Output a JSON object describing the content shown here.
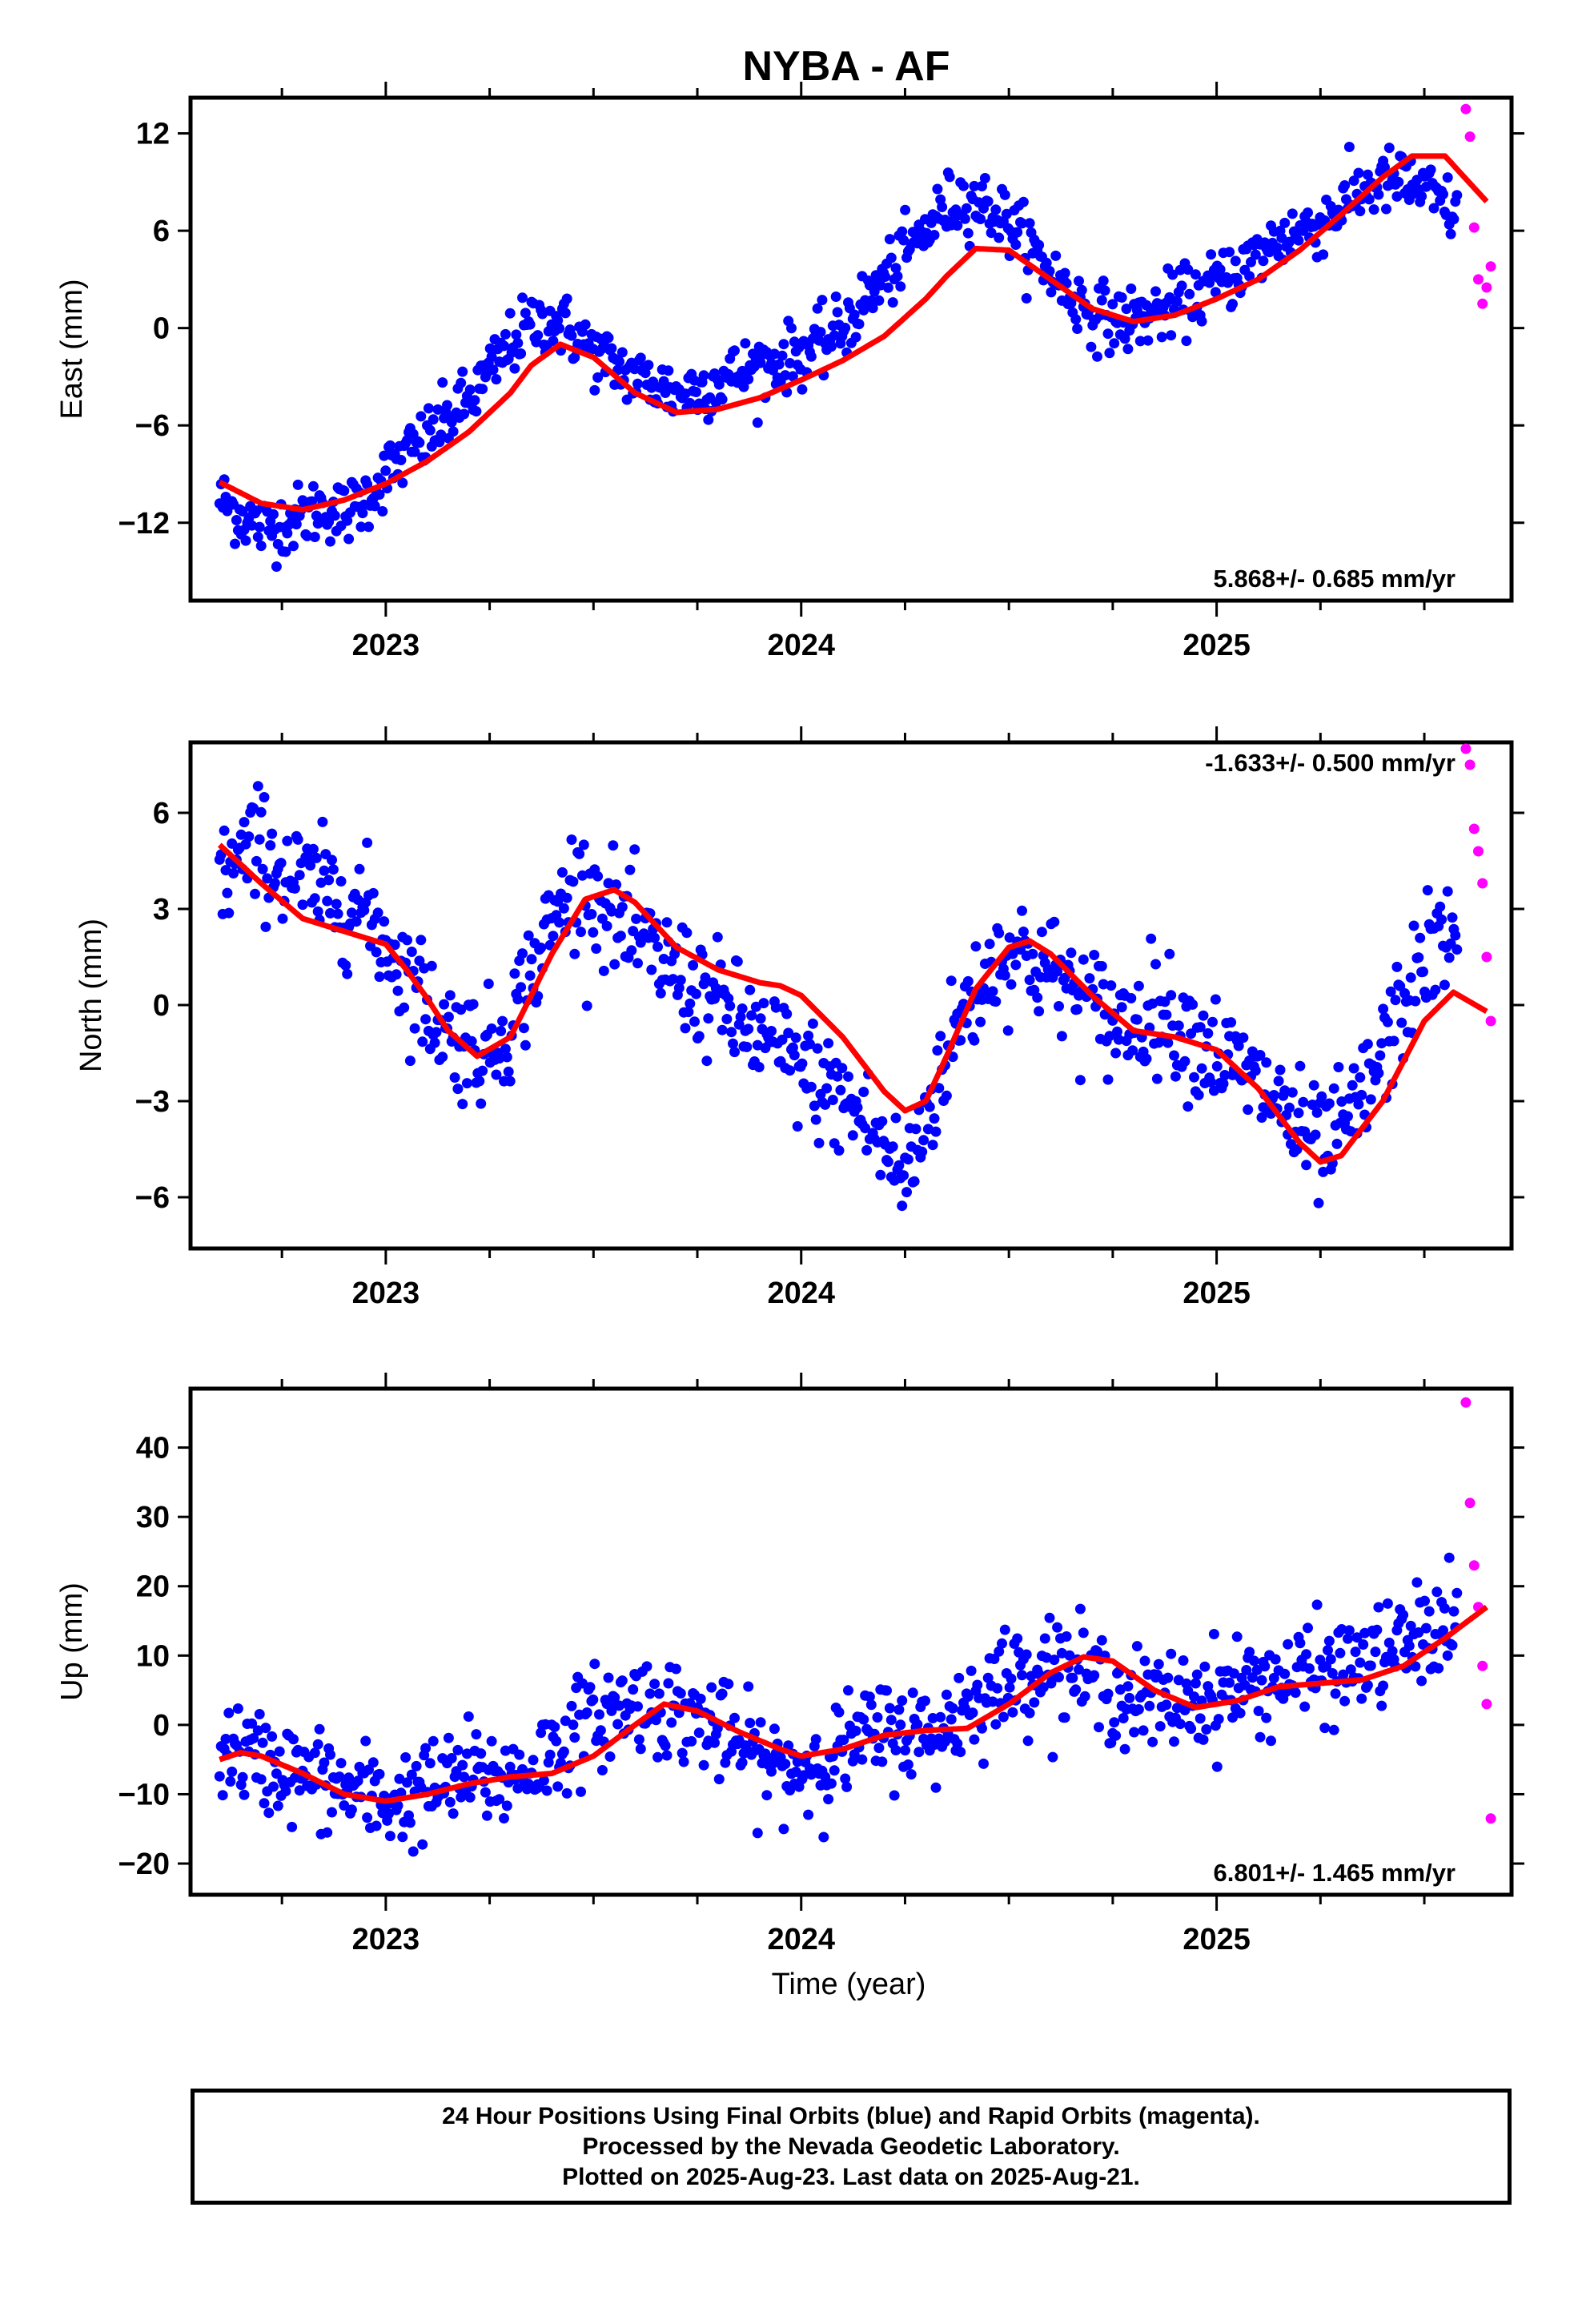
{
  "title": "NYBA - AF",
  "xlabel": "Time (year)",
  "x_ticks": [
    "2023",
    "2024",
    "2025"
  ],
  "colors": {
    "final": "#0000ff",
    "rapid": "#ff00ff",
    "fit": "#ff0000",
    "frame": "#000000"
  },
  "footer": {
    "line1": "24 Hour Positions Using Final Orbits (blue) and Rapid Orbits (magenta).",
    "line2": "Processed by the Nevada Geodetic Laboratory.",
    "line3": "Plotted on 2025-Aug-23. Last data on 2025-Aug-21."
  },
  "chart_data": [
    {
      "type": "scatter",
      "ylabel": "East (mm)",
      "rate": "5.868+/- 0.685 mm/yr",
      "rate_position": "bottom-right",
      "xlim": [
        2022.53,
        2025.71
      ],
      "ylim": [
        -16.8,
        14.2
      ],
      "yticks": [
        -12,
        -6,
        0,
        6,
        12
      ],
      "x_ticks": [
        2023,
        2024,
        2025
      ],
      "series": [
        {
          "role": "final",
          "x": [
            2022.6,
            2022.65,
            2022.7,
            2022.75,
            2022.8,
            2022.85,
            2022.9,
            2022.95,
            2023.0,
            2023.05,
            2023.1,
            2023.15,
            2023.2,
            2023.25,
            2023.3,
            2023.35,
            2023.4,
            2023.45,
            2023.5,
            2023.55,
            2023.6,
            2023.65,
            2023.7,
            2023.75,
            2023.8,
            2023.85,
            2023.9,
            2023.95,
            2024.0,
            2024.05,
            2024.1,
            2024.15,
            2024.2,
            2024.25,
            2024.3,
            2024.35,
            2024.4,
            2024.45,
            2024.5,
            2024.55,
            2024.6,
            2024.65,
            2024.7,
            2024.75,
            2024.8,
            2024.85,
            2024.9,
            2024.95,
            2025.0,
            2025.05,
            2025.1,
            2025.15,
            2025.2,
            2025.25,
            2025.3,
            2025.35,
            2025.4,
            2025.45,
            2025.5,
            2025.55,
            2025.58
          ],
          "y": [
            -10.5,
            -11.5,
            -12.3,
            -12.0,
            -11.6,
            -11.0,
            -11.5,
            -10.5,
            -9.0,
            -7.8,
            -6.8,
            -5.5,
            -4.5,
            -2.8,
            -1.0,
            0.2,
            0.5,
            -0.3,
            -1.5,
            -2.3,
            -3.0,
            -3.5,
            -4.0,
            -3.8,
            -3.2,
            -2.8,
            -2.3,
            -2.0,
            -1.5,
            -1.0,
            0.0,
            1.5,
            3.0,
            4.5,
            6.0,
            7.5,
            8.0,
            7.5,
            6.5,
            5.0,
            3.5,
            2.0,
            1.0,
            0.5,
            0.5,
            1.0,
            1.5,
            2.0,
            2.8,
            3.5,
            4.5,
            5.5,
            6.0,
            6.5,
            7.5,
            8.5,
            9.0,
            9.0,
            8.5,
            7.5,
            7.0
          ]
        },
        {
          "role": "rapid",
          "x": [
            2025.6,
            2025.61,
            2025.62,
            2025.63,
            2025.64,
            2025.65,
            2025.66
          ],
          "y": [
            13.5,
            11.8,
            6.2,
            3.0,
            1.5,
            2.5,
            3.8
          ]
        },
        {
          "role": "fit",
          "x": [
            2022.6,
            2022.7,
            2022.8,
            2022.9,
            2023.0,
            2023.1,
            2023.2,
            2023.3,
            2023.35,
            2023.42,
            2023.5,
            2023.6,
            2023.7,
            2023.8,
            2023.9,
            2024.0,
            2024.1,
            2024.2,
            2024.3,
            2024.35,
            2024.42,
            2024.5,
            2024.6,
            2024.7,
            2024.8,
            2024.9,
            2025.0,
            2025.1,
            2025.2,
            2025.3,
            2025.4,
            2025.47,
            2025.55,
            2025.65
          ],
          "y": [
            -9.5,
            -10.8,
            -11.2,
            -10.6,
            -9.6,
            -8.2,
            -6.4,
            -4.0,
            -2.3,
            -1.0,
            -1.8,
            -4.0,
            -5.2,
            -5.0,
            -4.3,
            -3.2,
            -2.0,
            -0.5,
            1.8,
            3.2,
            4.9,
            4.8,
            3.0,
            1.2,
            0.4,
            0.8,
            1.8,
            3.0,
            4.8,
            7.0,
            9.3,
            10.6,
            10.6,
            7.8
          ]
        }
      ]
    },
    {
      "type": "scatter",
      "ylabel": "North (mm)",
      "rate": "-1.633+/- 0.500 mm/yr",
      "rate_position": "top-right",
      "xlim": [
        2022.53,
        2025.71
      ],
      "ylim": [
        -7.6,
        8.2
      ],
      "yticks": [
        -6,
        -3,
        0,
        3,
        6
      ],
      "x_ticks": [
        2023,
        2024,
        2025
      ],
      "series": [
        {
          "role": "final",
          "x": [
            2022.6,
            2022.65,
            2022.7,
            2022.75,
            2022.8,
            2022.85,
            2022.9,
            2022.95,
            2023.0,
            2023.05,
            2023.1,
            2023.15,
            2023.2,
            2023.25,
            2023.3,
            2023.35,
            2023.4,
            2023.45,
            2023.5,
            2023.55,
            2023.6,
            2023.65,
            2023.7,
            2023.75,
            2023.8,
            2023.85,
            2023.9,
            2023.95,
            2024.0,
            2024.05,
            2024.1,
            2024.15,
            2024.2,
            2024.25,
            2024.3,
            2024.35,
            2024.4,
            2024.45,
            2024.5,
            2024.55,
            2024.6,
            2024.65,
            2024.7,
            2024.75,
            2024.8,
            2024.85,
            2024.9,
            2024.95,
            2025.0,
            2025.05,
            2025.1,
            2025.15,
            2025.2,
            2025.25,
            2025.3,
            2025.35,
            2025.4,
            2025.45,
            2025.5,
            2025.55,
            2025.58
          ],
          "y": [
            4.0,
            4.5,
            5.0,
            4.2,
            3.8,
            3.5,
            3.3,
            3.0,
            2.0,
            1.0,
            0.0,
            -0.8,
            -1.2,
            -1.5,
            -0.5,
            1.0,
            2.5,
            3.8,
            3.5,
            2.8,
            2.0,
            1.5,
            1.0,
            0.5,
            0.0,
            -0.5,
            -1.0,
            -1.5,
            -2.0,
            -2.5,
            -3.0,
            -3.5,
            -4.5,
            -5.5,
            -3.5,
            -1.5,
            0.0,
            1.0,
            1.8,
            1.5,
            1.0,
            0.5,
            0.0,
            -0.5,
            -0.5,
            0.0,
            -0.5,
            -1.0,
            -1.5,
            -2.0,
            -2.5,
            -3.0,
            -4.0,
            -4.5,
            -4.0,
            -3.0,
            -1.5,
            0.0,
            1.5,
            2.0,
            1.8
          ]
        },
        {
          "role": "rapid",
          "x": [
            2025.6,
            2025.61,
            2025.62,
            2025.63,
            2025.64,
            2025.65,
            2025.66
          ],
          "y": [
            8.0,
            7.5,
            5.5,
            4.8,
            3.8,
            1.5,
            -0.5
          ]
        },
        {
          "role": "fit",
          "x": [
            2022.6,
            2022.7,
            2022.8,
            2022.9,
            2023.0,
            2023.05,
            2023.1,
            2023.15,
            2023.22,
            2023.3,
            2023.4,
            2023.48,
            2023.55,
            2023.6,
            2023.7,
            2023.8,
            2023.9,
            2023.95,
            2024.0,
            2024.1,
            2024.2,
            2024.25,
            2024.3,
            2024.35,
            2024.42,
            2024.5,
            2024.55,
            2024.6,
            2024.7,
            2024.8,
            2024.9,
            2025.0,
            2025.1,
            2025.2,
            2025.25,
            2025.3,
            2025.4,
            2025.5,
            2025.57,
            2025.65
          ],
          "y": [
            5.0,
            3.8,
            2.7,
            2.3,
            1.9,
            1.1,
            0.2,
            -0.8,
            -1.6,
            -1.0,
            1.6,
            3.3,
            3.6,
            3.2,
            1.8,
            1.1,
            0.7,
            0.6,
            0.3,
            -1.0,
            -2.7,
            -3.3,
            -3.0,
            -1.6,
            0.5,
            1.8,
            2.0,
            1.6,
            0.3,
            -0.8,
            -1.0,
            -1.4,
            -2.6,
            -4.3,
            -4.9,
            -4.7,
            -3.0,
            -0.5,
            0.4,
            -0.2
          ]
        }
      ]
    },
    {
      "type": "scatter",
      "ylabel": "Up (mm)",
      "rate": "6.801+/- 1.465 mm/yr",
      "rate_position": "bottom-right",
      "xlim": [
        2022.53,
        2025.71
      ],
      "ylim": [
        -24.5,
        48.5
      ],
      "yticks": [
        -20,
        -10,
        0,
        10,
        20,
        30,
        40
      ],
      "x_ticks": [
        2023,
        2024,
        2025
      ],
      "series": [
        {
          "role": "final",
          "x": [
            2022.6,
            2022.65,
            2022.7,
            2022.75,
            2022.8,
            2022.85,
            2022.9,
            2022.95,
            2023.0,
            2023.05,
            2023.1,
            2023.15,
            2023.2,
            2023.25,
            2023.3,
            2023.35,
            2023.4,
            2023.45,
            2023.5,
            2023.55,
            2023.6,
            2023.65,
            2023.7,
            2023.75,
            2023.8,
            2023.85,
            2023.9,
            2023.95,
            2024.0,
            2024.05,
            2024.1,
            2024.15,
            2024.2,
            2024.25,
            2024.3,
            2024.35,
            2024.4,
            2024.45,
            2024.5,
            2024.55,
            2024.6,
            2024.65,
            2024.7,
            2024.75,
            2024.8,
            2024.85,
            2024.9,
            2024.95,
            2025.0,
            2025.05,
            2025.1,
            2025.15,
            2025.2,
            2025.25,
            2025.3,
            2025.35,
            2025.4,
            2025.45,
            2025.5,
            2025.55,
            2025.58
          ],
          "y": [
            -3.0,
            -4.0,
            -5.5,
            -6.0,
            -7.5,
            -8.0,
            -9.5,
            -10.0,
            -11.0,
            -10.5,
            -9.5,
            -8.5,
            -7.0,
            -8.0,
            -7.5,
            -6.0,
            -4.0,
            -1.0,
            1.0,
            2.0,
            3.5,
            3.0,
            2.0,
            1.0,
            -1.0,
            -3.0,
            -5.0,
            -6.5,
            -6.0,
            -5.0,
            -3.5,
            -2.0,
            -1.0,
            -0.5,
            -2.0,
            0.0,
            3.0,
            5.0,
            6.5,
            8.0,
            9.0,
            8.0,
            6.5,
            5.0,
            3.5,
            3.0,
            3.5,
            4.0,
            4.5,
            5.5,
            6.0,
            6.5,
            7.0,
            7.5,
            8.0,
            9.0,
            10.0,
            11.5,
            13.0,
            14.5,
            14.0
          ]
        },
        {
          "role": "rapid",
          "x": [
            2025.6,
            2025.61,
            2025.62,
            2025.63,
            2025.64,
            2025.65,
            2025.66
          ],
          "y": [
            46.5,
            32.0,
            23.0,
            17.0,
            8.5,
            3.0,
            -13.5
          ]
        },
        {
          "role": "fit",
          "x": [
            2022.6,
            2022.65,
            2022.7,
            2022.8,
            2022.9,
            2023.0,
            2023.1,
            2023.2,
            2023.3,
            2023.4,
            2023.5,
            2023.6,
            2023.67,
            2023.75,
            2023.85,
            2023.95,
            2024.0,
            2024.1,
            2024.2,
            2024.3,
            2024.4,
            2024.5,
            2024.6,
            2024.68,
            2024.75,
            2024.85,
            2024.95,
            2025.05,
            2025.15,
            2025.25,
            2025.35,
            2025.45,
            2025.55,
            2025.65
          ],
          "y": [
            -5.0,
            -4.0,
            -4.5,
            -7.0,
            -10.0,
            -11.0,
            -10.0,
            -8.5,
            -7.5,
            -7.0,
            -4.5,
            0.0,
            3.0,
            2.0,
            -1.0,
            -3.5,
            -4.5,
            -3.5,
            -1.5,
            -0.8,
            -0.5,
            3.0,
            7.5,
            9.8,
            9.2,
            5.0,
            2.5,
            3.5,
            5.5,
            6.0,
            6.5,
            8.5,
            12.5,
            17.0
          ]
        }
      ]
    }
  ]
}
